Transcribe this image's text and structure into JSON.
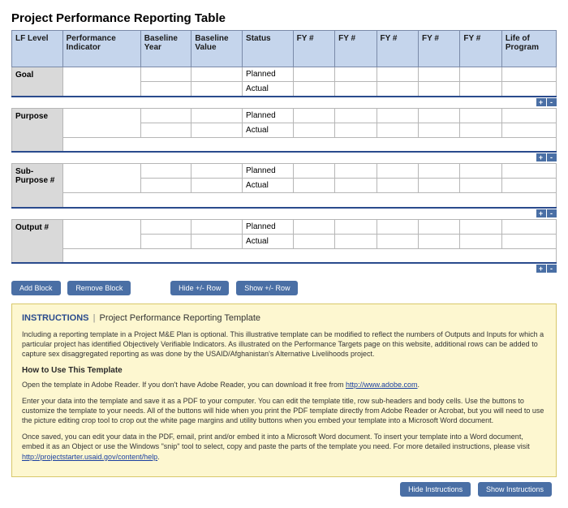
{
  "title": "Project Performance Reporting Table",
  "columns": [
    "LF Level",
    "Performance Indicator",
    "Baseline Year",
    "Baseline Value",
    "Status",
    "FY #",
    "FY #",
    "FY #",
    "FY #",
    "FY #",
    "Life of Program"
  ],
  "status_labels": {
    "planned": "Planned",
    "actual": "Actual"
  },
  "lf_levels": [
    "Goal",
    "Purpose",
    "Sub-Purpose #",
    "Output #"
  ],
  "row_controls": {
    "plus": "+",
    "minus": "-"
  },
  "buttons": {
    "add_block": "Add Block",
    "remove_block": "Remove Block",
    "hide_row": "Hide +/- Row",
    "show_row": "Show +/- Row",
    "hide_instructions": "Hide Instructions",
    "show_instructions": "Show Instructions"
  },
  "instructions": {
    "label": "INSTRUCTIONS",
    "separator": "|",
    "subtitle": "Project Performance Reporting Template",
    "para1": "Including a reporting template in a Project M&E Plan is optional. This illustrative template can be modified to reflect the numbers of Outputs and Inputs for which a particular project has identified Objectively Verifiable Indicators. As illustrated on the Performance Targets page on this website, additional rows can be added to capture sex disaggregated reporting as was done by the USAID/Afghanistan's Alternative Livelihoods project.",
    "how_header": "How to Use This Template",
    "para2a": "Open the template in Adobe Reader. If you don't have Adobe Reader, you can download it free from ",
    "link1": "http://www.adobe.com",
    "para2b": ".",
    "para3": "Enter your data into the template and save it as a PDF to your computer. You can edit the template title, row sub-headers and body cells. Use the buttons to customize the template to your needs. All of the buttons will hide when you print the PDF template directly from Adobe Reader or Acrobat, but you will need to use the picture editing crop tool to crop out the white page margins and utility buttons when you embed your template into a Microsoft Word document.",
    "para4a": "Once saved, you can edit your data in the PDF, email, print and/or embed it into a Microsoft Word document. To insert your template into a Word document, embed it as an Object or use the Windows \"snip\" tool to select, copy and paste the parts of the template you need. For more detailed instructions, please visit ",
    "link2": "http://projectstarter.usaid.gov/content/help",
    "para4b": "."
  },
  "colors": {
    "header_bg": "#c5d5ec",
    "lf_bg": "#d9d9d9",
    "separator": "#2a4b8d",
    "button_bg": "#4a6fa5",
    "instructions_bg": "#fdf7d0",
    "instructions_border": "#d8c86a",
    "link": "#1a3fa0"
  }
}
